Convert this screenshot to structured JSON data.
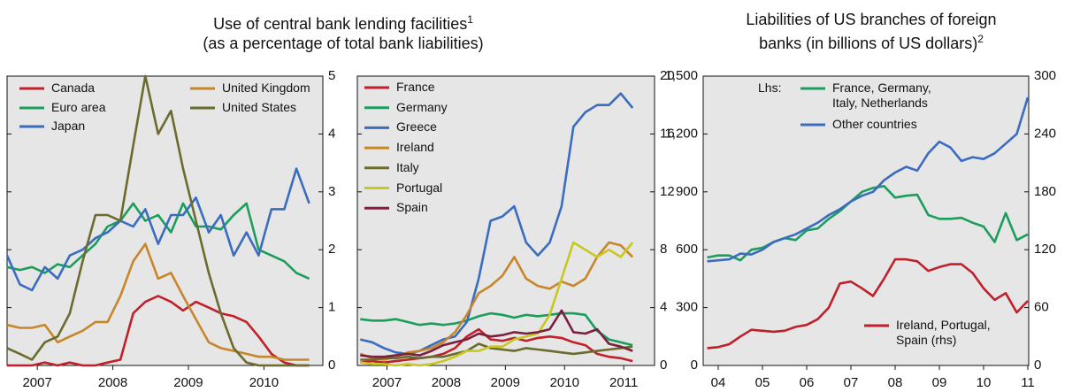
{
  "chart_data": [
    {
      "type": "line",
      "title": "Use of central bank lending facilities",
      "title_note": "1",
      "subtitle": "(as a percentage of total bank liabilities)",
      "x": [
        2006.6,
        2006.77,
        2006.93,
        2007.1,
        2007.27,
        2007.43,
        2007.6,
        2007.77,
        2007.93,
        2008.1,
        2008.27,
        2008.43,
        2008.6,
        2008.77,
        2008.93,
        2009.1,
        2009.27,
        2009.43,
        2009.6,
        2009.77,
        2009.93,
        2010.1,
        2010.27,
        2010.43,
        2010.6
      ],
      "xlim": [
        2006.6,
        2010.78
      ],
      "xticks": [
        2007,
        2008,
        2009,
        2010
      ],
      "ylim": [
        0,
        5
      ],
      "yticks": [
        0,
        1,
        2,
        3,
        4,
        5
      ],
      "series": [
        {
          "name": "Canada",
          "color": "#c0202a",
          "values": [
            0,
            0,
            0,
            0.05,
            0,
            0.05,
            0,
            0,
            0.05,
            0.1,
            0.9,
            1.1,
            1.2,
            1.1,
            0.95,
            1.1,
            1.0,
            0.9,
            0.85,
            0.75,
            0.5,
            0.2,
            0.05,
            0,
            0
          ]
        },
        {
          "name": "Euro area",
          "color": "#1a9e5c",
          "values": [
            1.7,
            1.65,
            1.7,
            1.6,
            1.75,
            1.7,
            1.9,
            2.1,
            2.4,
            2.5,
            2.8,
            2.5,
            2.6,
            2.3,
            2.8,
            2.4,
            2.4,
            2.35,
            2.6,
            2.8,
            2.0,
            1.9,
            1.8,
            1.6,
            1.5
          ]
        },
        {
          "name": "Japan",
          "color": "#3a6cc0",
          "values": [
            1.9,
            1.4,
            1.3,
            1.7,
            1.5,
            1.9,
            2.0,
            2.2,
            2.3,
            2.5,
            2.4,
            2.7,
            2.1,
            2.6,
            2.6,
            2.9,
            2.3,
            2.6,
            1.9,
            2.3,
            1.9,
            2.7,
            2.7,
            3.4,
            2.8
          ]
        },
        {
          "name": "United Kingdom",
          "color": "#c8862a",
          "values": [
            0.7,
            0.65,
            0.65,
            0.7,
            0.4,
            0.5,
            0.6,
            0.75,
            0.75,
            1.2,
            1.8,
            2.1,
            1.5,
            1.6,
            1.2,
            0.8,
            0.4,
            0.3,
            0.25,
            0.2,
            0.15,
            0.15,
            0.1,
            0.1,
            0.1
          ]
        },
        {
          "name": "United States",
          "color": "#6b6b2e",
          "values": [
            0.3,
            0.2,
            0.1,
            0.4,
            0.5,
            0.9,
            1.8,
            2.6,
            2.6,
            2.5,
            3.8,
            5.0,
            4.0,
            4.4,
            3.4,
            2.5,
            1.6,
            0.9,
            0.3,
            0.05,
            0,
            0,
            0,
            0,
            0
          ]
        }
      ]
    },
    {
      "type": "line",
      "x": [
        2006.55,
        2006.75,
        2006.95,
        2007.15,
        2007.35,
        2007.55,
        2007.75,
        2007.95,
        2008.15,
        2008.35,
        2008.55,
        2008.75,
        2008.95,
        2009.15,
        2009.35,
        2009.55,
        2009.75,
        2009.95,
        2010.15,
        2010.35,
        2010.55,
        2010.75,
        2010.95,
        2011.15
      ],
      "xlim": [
        2006.5,
        2011.52
      ],
      "xticks": [
        2007,
        2008,
        2009,
        2010,
        2011
      ],
      "ylim": [
        0,
        20
      ],
      "yticks": [
        0,
        4,
        8,
        12,
        16,
        20
      ],
      "series": [
        {
          "name": "France",
          "color": "#c0202a",
          "values": [
            0.2,
            0.3,
            0.2,
            0.3,
            0.4,
            0.5,
            0.6,
            0.8,
            1.2,
            2.0,
            2.5,
            1.8,
            1.7,
            1.9,
            1.7,
            1.9,
            2.0,
            1.9,
            1.6,
            1.4,
            0.8,
            0.6,
            0.5,
            0.3
          ]
        },
        {
          "name": "Germany",
          "color": "#1a9e5c",
          "values": [
            3.2,
            3.1,
            3.1,
            3.2,
            3.0,
            2.8,
            2.9,
            2.8,
            2.9,
            3.1,
            3.4,
            3.6,
            3.5,
            3.3,
            3.5,
            3.4,
            3.5,
            3.6,
            3.6,
            3.5,
            2.4,
            1.8,
            1.6,
            1.4
          ]
        },
        {
          "name": "Greece",
          "color": "#3a6cc0",
          "values": [
            1.8,
            1.6,
            1.2,
            0.9,
            0.8,
            1.0,
            1.4,
            1.8,
            2.0,
            3.0,
            6.0,
            10.0,
            10.3,
            11.0,
            8.5,
            7.6,
            8.5,
            11.0,
            16.5,
            17.5,
            18.0,
            18.0,
            18.8,
            17.8
          ]
        },
        {
          "name": "Ireland",
          "color": "#c8862a",
          "values": [
            0.8,
            0.5,
            0.4,
            0.6,
            0.9,
            1.0,
            1.2,
            1.6,
            2.3,
            3.5,
            5.0,
            5.5,
            6.2,
            7.5,
            6.0,
            5.5,
            5.3,
            5.8,
            5.5,
            6.0,
            7.5,
            8.5,
            8.3,
            7.5
          ]
        },
        {
          "name": "Italy",
          "color": "#6b6b2e",
          "values": [
            0.4,
            0.4,
            0.5,
            0.5,
            0.6,
            0.5,
            0.6,
            0.6,
            0.8,
            1.0,
            1.5,
            1.2,
            1.1,
            1.0,
            1.2,
            1.1,
            1.0,
            0.9,
            0.8,
            0.9,
            1.0,
            1.1,
            1.2,
            1.3
          ]
        },
        {
          "name": "Portugal",
          "color": "#c8c820",
          "values": [
            0.2,
            0.1,
            0.1,
            0,
            0.1,
            0,
            0.1,
            0.3,
            0.6,
            1.0,
            1.0,
            1.3,
            1.3,
            1.8,
            2.0,
            2.2,
            3.5,
            6.0,
            8.5,
            8.0,
            7.5,
            8.0,
            7.5,
            8.5
          ]
        },
        {
          "name": "Spain",
          "color": "#7a2040",
          "values": [
            0.7,
            0.6,
            0.6,
            0.7,
            0.8,
            0.7,
            1.0,
            1.4,
            1.6,
            1.8,
            2.2,
            2.0,
            2.1,
            2.3,
            2.2,
            2.3,
            2.5,
            3.8,
            2.3,
            2.2,
            2.5,
            1.5,
            1.3,
            1.0
          ]
        }
      ]
    },
    {
      "type": "line",
      "title": "Liabilities of US branches of foreign",
      "subtitle": "banks (in billions of US dollars)",
      "title_note": "2",
      "legend_title": "Lhs:",
      "x": [
        2003.75,
        2004.0,
        2004.25,
        2004.5,
        2004.75,
        2005.0,
        2005.25,
        2005.5,
        2005.75,
        2006.0,
        2006.25,
        2006.5,
        2006.75,
        2007.0,
        2007.25,
        2007.5,
        2007.75,
        2008.0,
        2008.25,
        2008.5,
        2008.75,
        2009.0,
        2009.25,
        2009.5,
        2009.75,
        2010.0,
        2010.25,
        2010.5,
        2010.75,
        2011.0
      ],
      "xlim": [
        2003.66,
        2011.02
      ],
      "xticks": [
        {
          "value": 2004,
          "label": "04"
        },
        {
          "value": 2005,
          "label": "05"
        },
        {
          "value": 2006,
          "label": "06"
        },
        {
          "value": 2007,
          "label": "07"
        },
        {
          "value": 2008,
          "label": "08"
        },
        {
          "value": 2009,
          "label": "09"
        },
        {
          "value": 2010,
          "label": "10"
        },
        {
          "value": 2011,
          "label": "11"
        }
      ],
      "ylim": [
        0,
        1500
      ],
      "yticks": [
        0,
        300,
        600,
        900,
        {
          "value": 1200,
          "label": "1,200"
        },
        {
          "value": 1500,
          "label": "1,500"
        }
      ],
      "y2lim": [
        0,
        300
      ],
      "y2ticks": [
        0,
        60,
        120,
        180,
        240,
        300
      ],
      "series": [
        {
          "name": "France, Germany, Italy, Netherlands",
          "color": "#1a9e5c",
          "values": [
            560,
            570,
            570,
            545,
            600,
            610,
            640,
            660,
            650,
            700,
            710,
            760,
            800,
            850,
            900,
            920,
            930,
            870,
            880,
            885,
            780,
            760,
            760,
            765,
            740,
            720,
            640,
            790,
            650,
            680
          ]
        },
        {
          "name": "Other countries",
          "color": "#3a6cc0",
          "values": [
            540,
            545,
            550,
            580,
            575,
            600,
            640,
            660,
            680,
            710,
            740,
            780,
            810,
            850,
            880,
            900,
            960,
            1000,
            1030,
            1010,
            1100,
            1160,
            1130,
            1060,
            1080,
            1070,
            1100,
            1150,
            1200,
            1390
          ]
        },
        {
          "name": "Ireland, Portugal, Spain (rhs)",
          "color": "#c0202a",
          "axis": "y2",
          "values": [
            18,
            19,
            22,
            30,
            37,
            36,
            35,
            36,
            40,
            42,
            48,
            60,
            85,
            87,
            80,
            72,
            90,
            110,
            110,
            108,
            98,
            102,
            105,
            105,
            96,
            80,
            68,
            75,
            55,
            67
          ]
        }
      ]
    }
  ]
}
